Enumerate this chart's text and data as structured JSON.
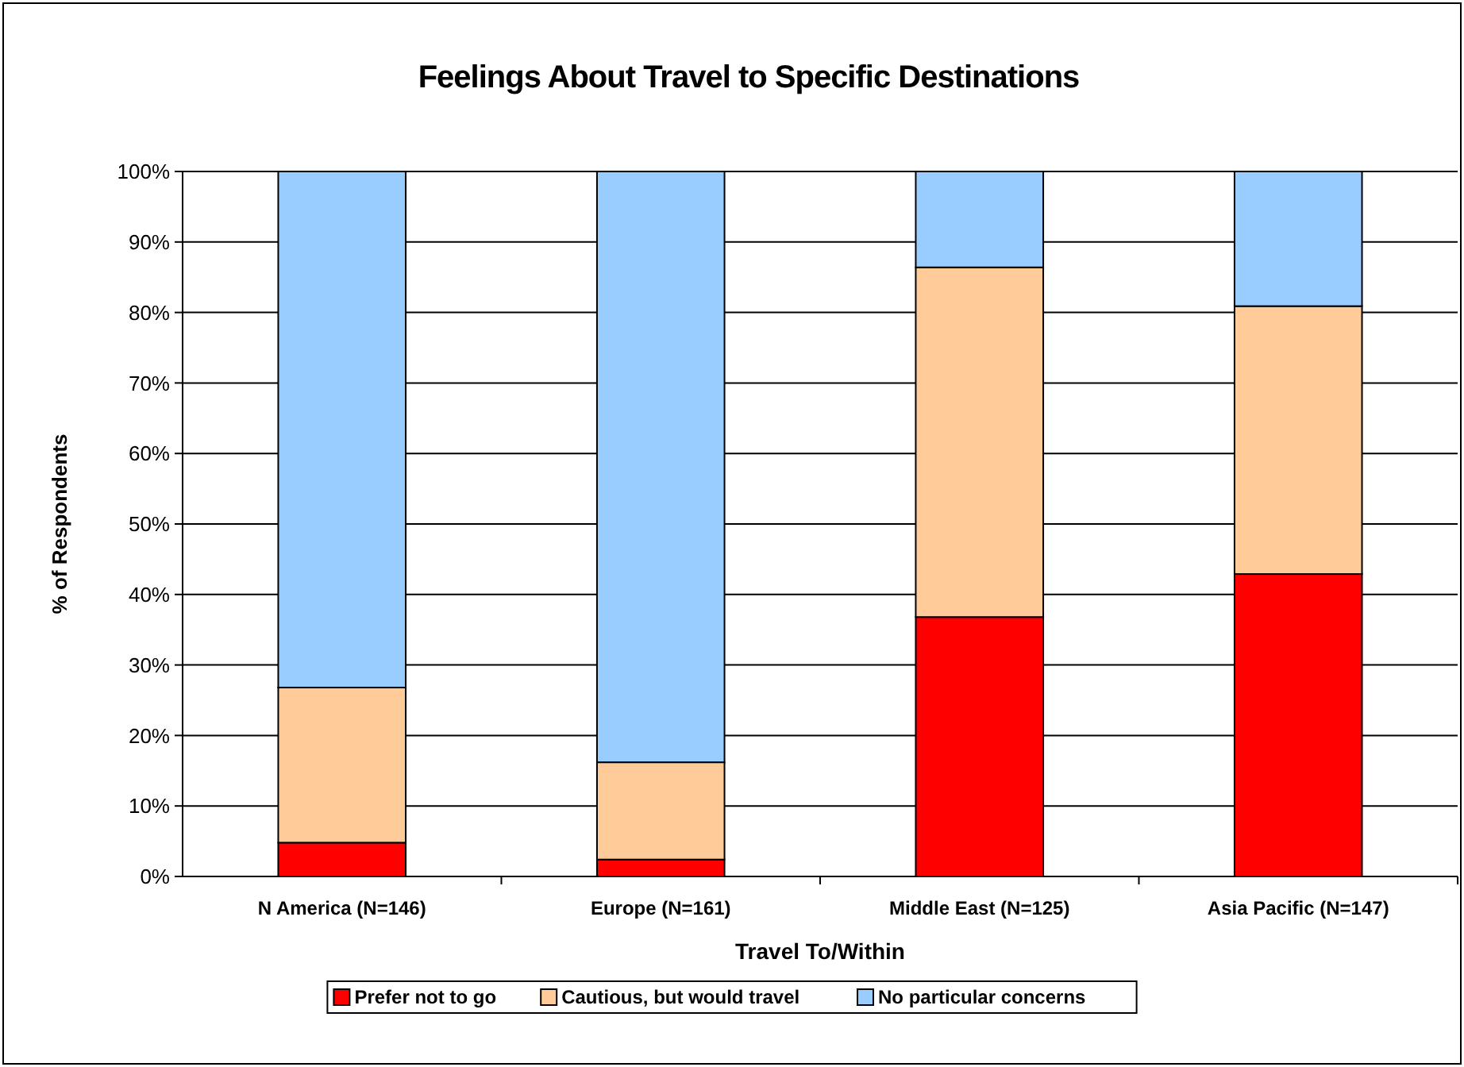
{
  "chart_data": {
    "type": "bar",
    "title": "Feelings About Travel to Specific Destinations",
    "xlabel": "Travel To/Within",
    "ylabel": "% of Respondents",
    "categories": [
      "N America (N=146)",
      "Europe (N=161)",
      "Middle East (N=125)",
      "Asia Pacific (N=147)"
    ],
    "stacked": true,
    "series": [
      {
        "name": "Prefer not to go",
        "color": "#ff0000",
        "values": [
          4.8,
          2.4,
          36.8,
          42.9
        ]
      },
      {
        "name": "Cautious, but would travel",
        "color": "#ffcc99",
        "values": [
          22.0,
          13.8,
          49.6,
          38.0
        ]
      },
      {
        "name": "No particular concerns",
        "color": "#99ccff",
        "values": [
          73.2,
          83.8,
          13.6,
          19.1
        ]
      }
    ],
    "ylim": [
      0,
      100
    ],
    "yticks": [
      {
        "value": 0,
        "label": "0%"
      },
      {
        "value": 10,
        "label": "10%"
      },
      {
        "value": 20,
        "label": "20%"
      },
      {
        "value": 30,
        "label": "30%"
      },
      {
        "value": 40,
        "label": "40%"
      },
      {
        "value": 50,
        "label": "50%"
      },
      {
        "value": 60,
        "label": "60%"
      },
      {
        "value": 70,
        "label": "70%"
      },
      {
        "value": 80,
        "label": "80%"
      },
      {
        "value": 90,
        "label": "90%"
      },
      {
        "value": 100,
        "label": "100%"
      }
    ],
    "grid": "y",
    "legend": "bottom"
  }
}
